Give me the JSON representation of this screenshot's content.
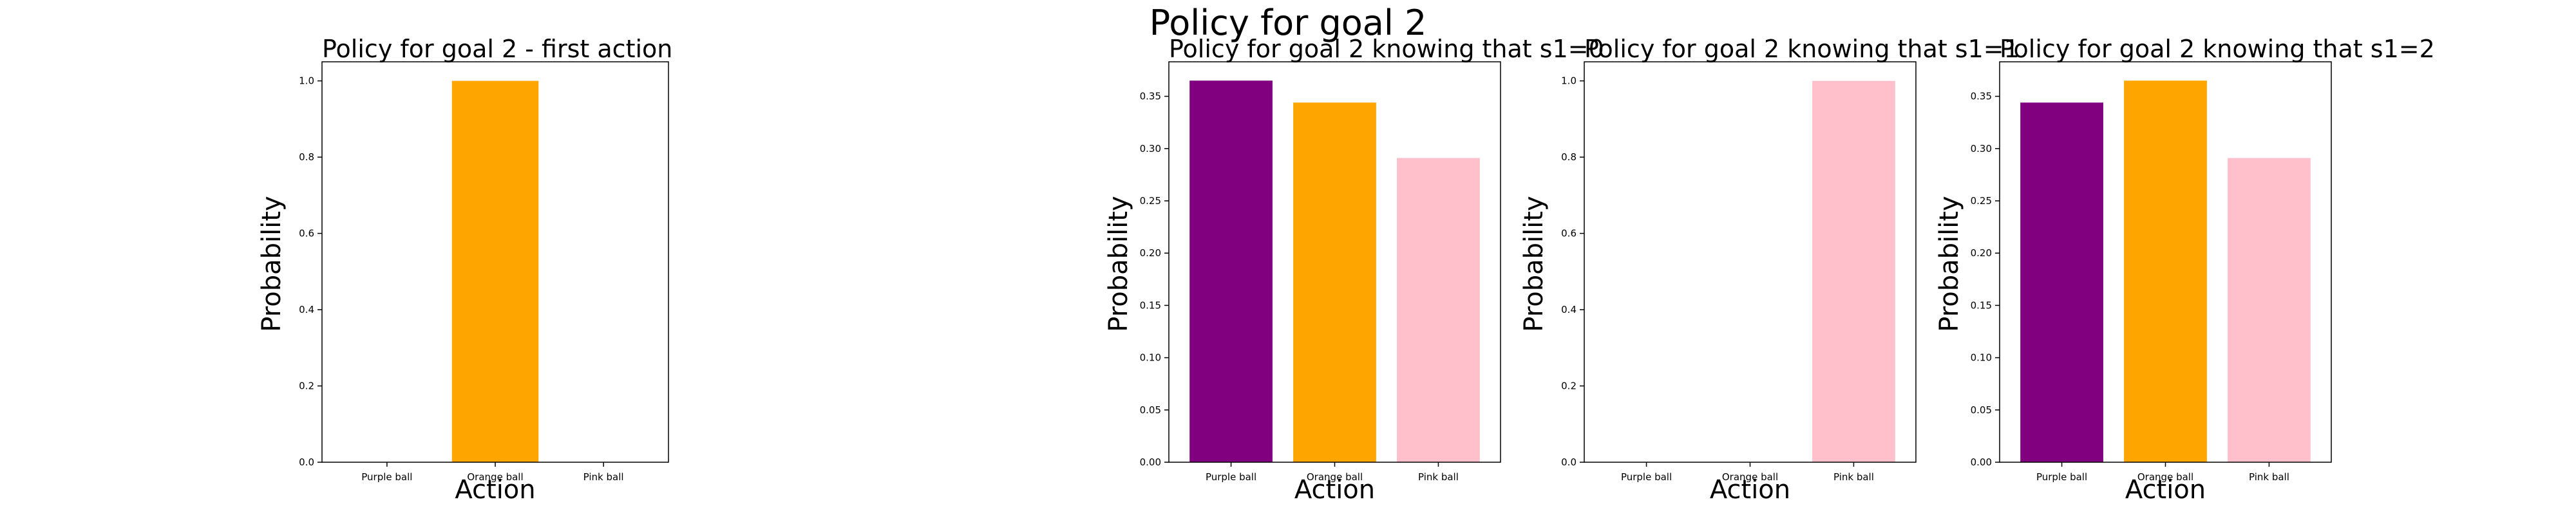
{
  "suptitle": "Policy for goal 2",
  "chart_data": [
    {
      "type": "bar",
      "title": "Policy for goal 2 - first action",
      "xlabel": "Action",
      "ylabel": "Probability",
      "categories": [
        "Purple ball",
        "Orange ball",
        "Pink ball"
      ],
      "values": [
        0.0,
        1.0,
        0.0
      ],
      "colors": [
        "#800080",
        "#FFA500",
        "#FFC0CB"
      ],
      "ylim": [
        0,
        1.05
      ],
      "yticks": [
        0.0,
        0.2,
        0.4,
        0.6,
        0.8,
        1.0
      ],
      "ytick_labels": [
        "0.0",
        "0.2",
        "0.4",
        "0.6",
        "0.8",
        "1.0"
      ],
      "grid": false
    },
    {
      "type": "bar",
      "title": "Policy for goal 2 knowing that s1=0",
      "xlabel": "Action",
      "ylabel": "Probability",
      "categories": [
        "Purple ball",
        "Orange ball",
        "Pink ball"
      ],
      "values": [
        0.365,
        0.344,
        0.291
      ],
      "colors": [
        "#800080",
        "#FFA500",
        "#FFC0CB"
      ],
      "ylim": [
        0,
        0.383
      ],
      "yticks": [
        0.0,
        0.05,
        0.1,
        0.15,
        0.2,
        0.25,
        0.3,
        0.35
      ],
      "ytick_labels": [
        "0.00",
        "0.05",
        "0.10",
        "0.15",
        "0.20",
        "0.25",
        "0.30",
        "0.35"
      ],
      "grid": false
    },
    {
      "type": "bar",
      "title": "Policy for goal 2 knowing that s1=1",
      "xlabel": "Action",
      "ylabel": "Probability",
      "categories": [
        "Purple ball",
        "Orange ball",
        "Pink ball"
      ],
      "values": [
        0.0,
        0.0,
        1.0
      ],
      "colors": [
        "#800080",
        "#FFA500",
        "#FFC0CB"
      ],
      "ylim": [
        0,
        1.05
      ],
      "yticks": [
        0.0,
        0.2,
        0.4,
        0.6,
        0.8,
        1.0
      ],
      "ytick_labels": [
        "0.0",
        "0.2",
        "0.4",
        "0.6",
        "0.8",
        "1.0"
      ],
      "grid": false
    },
    {
      "type": "bar",
      "title": "Policy for goal 2 knowing that s1=2",
      "xlabel": "Action",
      "ylabel": "Probability",
      "categories": [
        "Purple ball",
        "Orange ball",
        "Pink ball"
      ],
      "values": [
        0.344,
        0.365,
        0.291
      ],
      "colors": [
        "#800080",
        "#FFA500",
        "#FFC0CB"
      ],
      "ylim": [
        0,
        0.383
      ],
      "yticks": [
        0.0,
        0.05,
        0.1,
        0.15,
        0.2,
        0.25,
        0.3,
        0.35
      ],
      "ytick_labels": [
        "0.00",
        "0.05",
        "0.10",
        "0.15",
        "0.20",
        "0.25",
        "0.30",
        "0.35"
      ],
      "grid": false
    }
  ]
}
